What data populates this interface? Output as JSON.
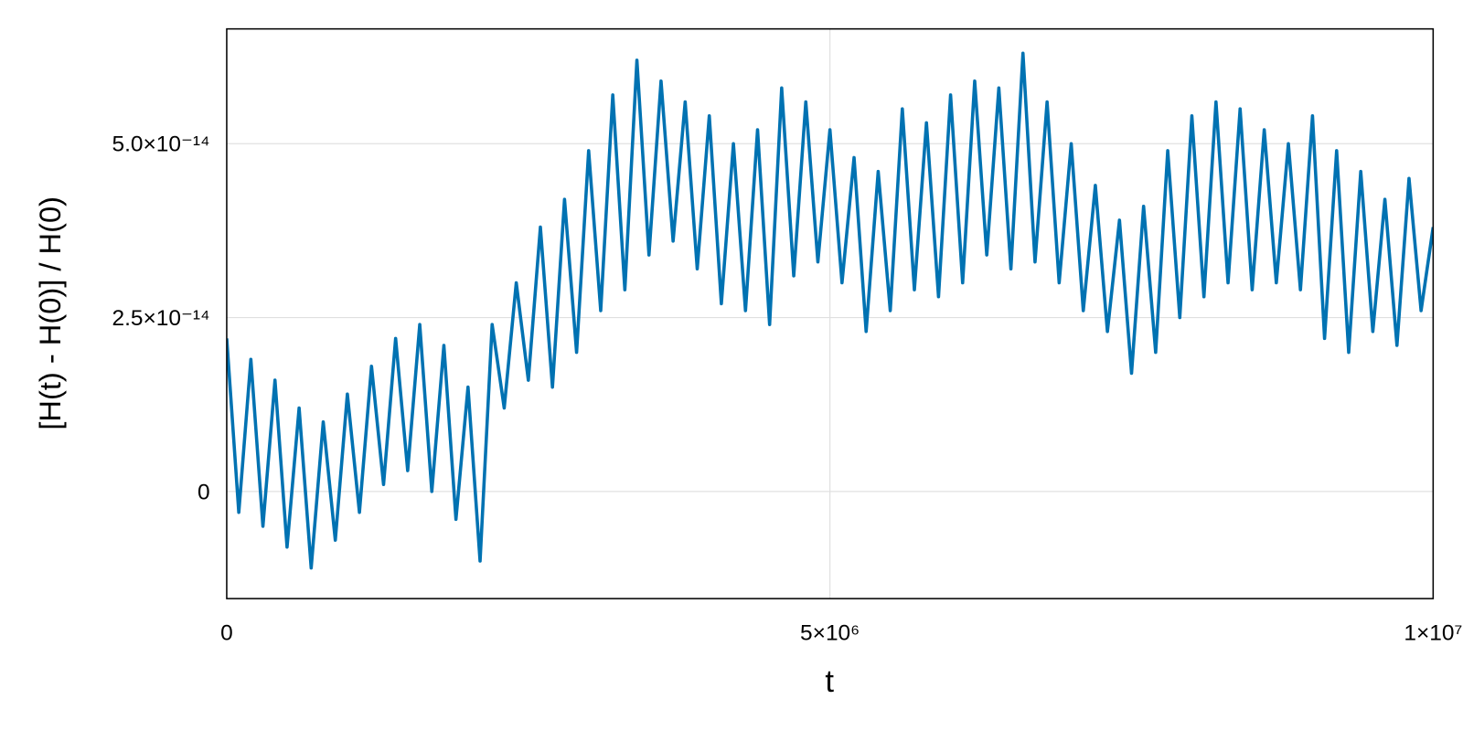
{
  "chart_data": {
    "type": "line",
    "xlabel": "t",
    "ylabel": "[H(t) - H(0)] / H(0)",
    "x": [
      0,
      100000,
      200000,
      300000,
      400000,
      500000,
      600000,
      700000,
      800000,
      900000,
      1000000,
      1100000,
      1200000,
      1300000,
      1400000,
      1500000,
      1600000,
      1700000,
      1800000,
      1900000,
      2000000,
      2100000,
      2200000,
      2300000,
      2400000,
      2500000,
      2600000,
      2700000,
      2800000,
      2900000,
      3000000,
      3100000,
      3200000,
      3300000,
      3400000,
      3500000,
      3600000,
      3700000,
      3800000,
      3900000,
      4000000,
      4100000,
      4200000,
      4300000,
      4400000,
      4500000,
      4600000,
      4700000,
      4800000,
      4900000,
      5000000,
      5100000,
      5200000,
      5300000,
      5400000,
      5500000,
      5600000,
      5700000,
      5800000,
      5900000,
      6000000,
      6100000,
      6200000,
      6300000,
      6400000,
      6500000,
      6600000,
      6700000,
      6800000,
      6900000,
      7000000,
      7100000,
      7200000,
      7300000,
      7400000,
      7500000,
      7600000,
      7700000,
      7800000,
      7900000,
      8000000,
      8100000,
      8200000,
      8300000,
      8400000,
      8500000,
      8600000,
      8700000,
      8800000,
      8900000,
      9000000,
      9100000,
      9200000,
      9300000,
      9400000,
      9500000,
      9600000,
      9700000,
      9800000,
      9900000,
      10000000
    ],
    "series": [
      {
        "color": "#0072b2",
        "values": [
          2.2e-14,
          -3e-15,
          1.9e-14,
          -5e-15,
          1.6e-14,
          -8e-15,
          1.2e-14,
          -1.1e-14,
          1e-14,
          -7e-15,
          1.4e-14,
          -3e-15,
          1.8e-14,
          1e-15,
          2.2e-14,
          3e-15,
          2.4e-14,
          0.0,
          2.1e-14,
          -4e-15,
          1.5e-14,
          -1e-14,
          2.4e-14,
          1.2e-14,
          3e-14,
          1.6e-14,
          3.8e-14,
          1.5e-14,
          4.2e-14,
          2e-14,
          4.9e-14,
          2.6e-14,
          5.7e-14,
          2.9e-14,
          6.2e-14,
          3.4e-14,
          5.9e-14,
          3.6e-14,
          5.6e-14,
          3.2e-14,
          5.4e-14,
          2.7e-14,
          5e-14,
          2.6e-14,
          5.2e-14,
          2.4e-14,
          5.8e-14,
          3.1e-14,
          5.6e-14,
          3.3e-14,
          5.2e-14,
          3e-14,
          4.8e-14,
          2.3e-14,
          4.6e-14,
          2.6e-14,
          5.5e-14,
          2.9e-14,
          5.3e-14,
          2.8e-14,
          5.7e-14,
          3e-14,
          5.9e-14,
          3.4e-14,
          5.8e-14,
          3.2e-14,
          6.3e-14,
          3.3e-14,
          5.6e-14,
          3e-14,
          5e-14,
          2.6e-14,
          4.4e-14,
          2.3e-14,
          3.9e-14,
          1.7e-14,
          4.1e-14,
          2e-14,
          4.9e-14,
          2.5e-14,
          5.4e-14,
          2.8e-14,
          5.6e-14,
          3e-14,
          5.5e-14,
          2.9e-14,
          5.2e-14,
          3e-14,
          5e-14,
          2.9e-14,
          5.4e-14,
          2.2e-14,
          4.9e-14,
          2e-14,
          4.6e-14,
          2.3e-14,
          4.2e-14,
          2.1e-14,
          4.5e-14,
          2.6e-14,
          3.8e-14
        ]
      }
    ],
    "xlim": [
      0,
      10000000
    ],
    "xticks": [
      0,
      {
        "value": 5000000,
        "label": "5×10⁶"
      },
      {
        "value": 10000000,
        "label": "1×10⁷"
      }
    ],
    "ylim": [
      -1.54e-14,
      6.65e-14
    ],
    "yticks": [
      0,
      {
        "value": 2.5e-14,
        "label": "2.5×10⁻¹⁴"
      },
      {
        "value": 5e-14,
        "label": "5.0×10⁻¹⁴"
      }
    ],
    "grid": true
  }
}
